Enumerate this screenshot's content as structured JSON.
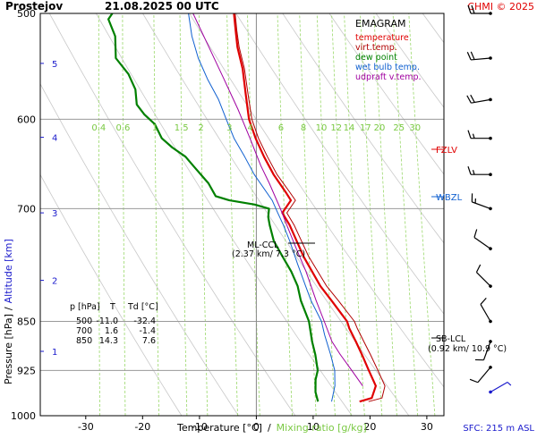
{
  "header": {
    "station": "Prostejov",
    "datetime": "21.08.2025 00 UTC",
    "copyright": "CHMI © 2025"
  },
  "legend": {
    "title": "EMAGRAM",
    "items": [
      {
        "label": "temperature",
        "color": "#e00000"
      },
      {
        "label": "virt.temp.",
        "color": "#b00000"
      },
      {
        "label": "dew point",
        "color": "#008000"
      },
      {
        "label": "wet bulb temp.",
        "color": "#1060d0"
      },
      {
        "label": "udpraft v.temp.",
        "color": "#a000a0"
      }
    ]
  },
  "axes": {
    "y_label_pressure": "Pressure [hPa]",
    "y_label_sep": "/",
    "y_label_altitude": "Altitude [km]",
    "x_label_temp": "Temperature [°C]",
    "x_label_sep": "/",
    "x_label_mix": "Mixing ratio [g/kg]",
    "sfc": "SFC: 215 m ASL"
  },
  "levels": {
    "fzlv": "FZLV",
    "wbzl": "WBZL",
    "ml_ccl_title": "ML-CCL",
    "ml_ccl_detail": "(2.37 km/ 7.3 °C)",
    "sb_lcl_title": "SB-LCL",
    "sb_lcl_detail": "(0.92 km/ 10.9 °C)"
  },
  "table": {
    "headers": [
      "p [hPa]",
      "T",
      "Td [°C]"
    ],
    "rows": [
      [
        "500",
        "-11.0",
        "-32.4"
      ],
      [
        "700",
        "1.6",
        "-1.4"
      ],
      [
        "850",
        "14.3",
        "7.6"
      ]
    ]
  },
  "chart_data": {
    "type": "line",
    "title": "Prostejov 21.08.2025 00 UTC",
    "xlabel": "Temperature [°C] / Mixing ratio [g/kg]",
    "ylabel": "Pressure [hPa] / Altitude [km]",
    "y_scale": "log",
    "xlim": [
      -38,
      33
    ],
    "ylim": [
      1000,
      500
    ],
    "skew_per_decade_log10p": 23.5,
    "pressure_ticks": [
      "500",
      "600",
      "700",
      "850",
      "925",
      "1000"
    ],
    "temperature_ticks": [
      "-30",
      "-20",
      "-10",
      "0",
      "10",
      "20",
      "30"
    ],
    "altitude_ticks": [
      {
        "label": "1",
        "p": 895
      },
      {
        "label": "2",
        "p": 792
      },
      {
        "label": "3",
        "p": 705
      },
      {
        "label": "4",
        "p": 619
      },
      {
        "label": "5",
        "p": 545
      }
    ],
    "mixing_ratio_labels": [
      "0.4",
      "0.6",
      "1",
      "1.5",
      "2",
      "3",
      "4",
      "6",
      "8",
      "10",
      "12",
      "14",
      "17",
      "20",
      "25",
      "30"
    ],
    "mixing_ratio_lines": [
      0.4,
      0.6,
      1,
      1.5,
      2,
      3,
      4,
      6,
      8,
      10,
      12,
      14,
      17,
      20,
      25,
      30
    ],
    "series": [
      {
        "name": "temperature",
        "color": "#e00000",
        "points": [
          [
            976,
            17.9
          ],
          [
            970,
            20.0
          ],
          [
            950,
            20.5
          ],
          [
            925,
            19.0
          ],
          [
            900,
            17.5
          ],
          [
            880,
            16.2
          ],
          [
            860,
            14.8
          ],
          [
            850,
            14.3
          ],
          [
            820,
            11.2
          ],
          [
            800,
            9.0
          ],
          [
            760,
            5.5
          ],
          [
            720,
            2.5
          ],
          [
            705,
            1.0
          ],
          [
            690,
            2.3
          ],
          [
            680,
            1.2
          ],
          [
            660,
            -1.2
          ],
          [
            640,
            -3.2
          ],
          [
            620,
            -5.0
          ],
          [
            600,
            -6.5
          ],
          [
            575,
            -7.5
          ],
          [
            550,
            -8.5
          ],
          [
            530,
            -9.8
          ],
          [
            515,
            -10.4
          ],
          [
            500,
            -11.0
          ]
        ]
      },
      {
        "name": "virt.temp.",
        "color": "#b00000",
        "points": [
          [
            976,
            19.5
          ],
          [
            970,
            21.8
          ],
          [
            950,
            22.1
          ],
          [
            925,
            20.6
          ],
          [
            900,
            19.0
          ],
          [
            880,
            17.6
          ],
          [
            860,
            16.2
          ],
          [
            850,
            15.6
          ],
          [
            820,
            12.4
          ],
          [
            800,
            10.1
          ],
          [
            760,
            6.4
          ],
          [
            720,
            3.3
          ],
          [
            705,
            1.8
          ],
          [
            690,
            3.1
          ],
          [
            680,
            1.9
          ],
          [
            660,
            -0.6
          ],
          [
            640,
            -2.6
          ],
          [
            620,
            -4.5
          ],
          [
            600,
            -6.0
          ],
          [
            575,
            -7.1
          ],
          [
            550,
            -8.2
          ],
          [
            530,
            -9.5
          ],
          [
            515,
            -10.2
          ],
          [
            500,
            -10.8
          ]
        ]
      },
      {
        "name": "dew point",
        "color": "#008000",
        "points": [
          [
            976,
            10.6
          ],
          [
            960,
            10.0
          ],
          [
            940,
            9.8
          ],
          [
            925,
            10.0
          ],
          [
            900,
            9.3
          ],
          [
            880,
            8.5
          ],
          [
            850,
            7.6
          ],
          [
            820,
            5.8
          ],
          [
            800,
            5.0
          ],
          [
            780,
            3.6
          ],
          [
            760,
            1.8
          ],
          [
            740,
            0.0
          ],
          [
            720,
            -1.0
          ],
          [
            710,
            -1.4
          ],
          [
            700,
            -1.4
          ],
          [
            695,
            -4.0
          ],
          [
            690,
            -8.5
          ],
          [
            685,
            -11.0
          ],
          [
            670,
            -12.5
          ],
          [
            650,
            -15.5
          ],
          [
            640,
            -17.0
          ],
          [
            630,
            -19.5
          ],
          [
            620,
            -21.5
          ],
          [
            605,
            -23.0
          ],
          [
            595,
            -25.0
          ],
          [
            585,
            -26.5
          ],
          [
            570,
            -27.0
          ],
          [
            555,
            -28.5
          ],
          [
            540,
            -31.0
          ],
          [
            520,
            -31.5
          ],
          [
            505,
            -33.0
          ],
          [
            500,
            -32.4
          ]
        ]
      },
      {
        "name": "wet bulb temp.",
        "color": "#1060d0",
        "points": [
          [
            976,
            13.0
          ],
          [
            950,
            13.3
          ],
          [
            925,
            13.0
          ],
          [
            900,
            12.0
          ],
          [
            870,
            10.6
          ],
          [
            850,
            9.8
          ],
          [
            820,
            7.6
          ],
          [
            800,
            6.4
          ],
          [
            770,
            4.6
          ],
          [
            740,
            2.8
          ],
          [
            720,
            1.4
          ],
          [
            705,
            0.2
          ],
          [
            690,
            -1.0
          ],
          [
            660,
            -4.6
          ],
          [
            640,
            -6.6
          ],
          [
            620,
            -8.8
          ],
          [
            600,
            -10.5
          ],
          [
            580,
            -12.2
          ],
          [
            560,
            -14.5
          ],
          [
            540,
            -16.5
          ],
          [
            520,
            -18.0
          ],
          [
            500,
            -19.0
          ]
        ]
      },
      {
        "name": "udpraft v.temp.",
        "color": "#a000a0",
        "points": [
          [
            950,
            18.2
          ],
          [
            925,
            16.0
          ],
          [
            900,
            13.7
          ],
          [
            880,
            12.0
          ],
          [
            850,
            10.3
          ],
          [
            820,
            8.5
          ],
          [
            780,
            6.2
          ],
          [
            750,
            4.1
          ],
          [
            720,
            2.0
          ],
          [
            700,
            0.6
          ],
          [
            670,
            -1.8
          ],
          [
            650,
            -3.6
          ],
          [
            620,
            -6.0
          ],
          [
            590,
            -8.6
          ],
          [
            560,
            -11.6
          ],
          [
            530,
            -14.8
          ],
          [
            500,
            -18.2
          ]
        ]
      }
    ],
    "wind_barbs": [
      {
        "p": 500,
        "dir": 270,
        "kt": 20
      },
      {
        "p": 540,
        "dir": 265,
        "kt": 20
      },
      {
        "p": 580,
        "dir": 260,
        "kt": 20
      },
      {
        "p": 620,
        "dir": 270,
        "kt": 15
      },
      {
        "p": 660,
        "dir": 270,
        "kt": 15
      },
      {
        "p": 700,
        "dir": 290,
        "kt": 15
      },
      {
        "p": 750,
        "dir": 305,
        "kt": 10
      },
      {
        "p": 800,
        "dir": 315,
        "kt": 10
      },
      {
        "p": 850,
        "dir": 330,
        "kt": 10
      },
      {
        "p": 880,
        "dir": 200,
        "kt": 10
      },
      {
        "p": 920,
        "dir": 220,
        "kt": 10
      },
      {
        "p": 960,
        "dir": 60,
        "kt": 5
      }
    ]
  }
}
